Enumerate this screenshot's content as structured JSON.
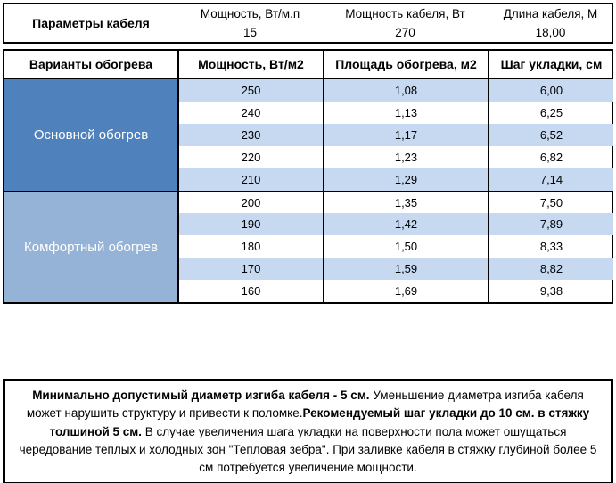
{
  "params_table": {
    "title": "Параметры кабеля",
    "fields": [
      {
        "label": "Мощность, Вт/м.п",
        "value": "15"
      },
      {
        "label": "Мощность кабеля, Вт",
        "value": "270"
      },
      {
        "label": "Длина кабеля, М",
        "value": "18,00"
      }
    ]
  },
  "heating_table": {
    "headers": [
      "Варианты обогрева",
      "Мощность, Вт/м2",
      "Площадь обогрева, м2",
      "Шаг укладки, см"
    ],
    "stripe_color": "#c6d9f1",
    "sections": [
      {
        "name": "Основной обогрев",
        "color": "#4f81bd",
        "rows": [
          [
            "250",
            "1,08",
            "6,00"
          ],
          [
            "240",
            "1,13",
            "6,25"
          ],
          [
            "230",
            "1,17",
            "6,52"
          ],
          [
            "220",
            "1,23",
            "6,82"
          ],
          [
            "210",
            "1,29",
            "7,14"
          ]
        ]
      },
      {
        "name": "Комфортный обогрев",
        "color": "#95b3d7",
        "rows": [
          [
            "200",
            "1,35",
            "7,50"
          ],
          [
            "190",
            "1,42",
            "7,89"
          ],
          [
            "180",
            "1,50",
            "8,33"
          ],
          [
            "170",
            "1,59",
            "8,82"
          ],
          [
            "160",
            "1,69",
            "9,38"
          ]
        ]
      }
    ]
  },
  "note": {
    "segments": [
      {
        "text": "Минимально допустимый диаметр изгиба кабеля - 5 см.",
        "bold": true
      },
      {
        "text": " Уменьшение диаметра изгиба кабеля может нарушить структуру и привести к поломке.",
        "bold": false
      },
      {
        "text": "Рекомендуемый шаг укладки до 10 см. в стяжку толшиной 5 см.",
        "bold": true
      },
      {
        "text": " В случае увеличения шага укладки на поверхности пола может ошущаться чередование теплых и холодных зон \"Тепловая зебра\". При заливке кабеля в стяжку глубиной более 5 см потребуется увеличение мощности.",
        "bold": false
      }
    ]
  }
}
